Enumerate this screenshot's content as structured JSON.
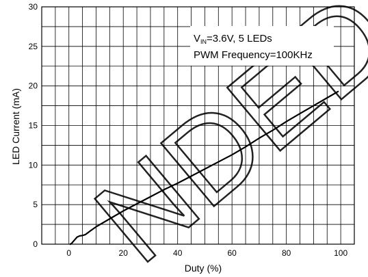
{
  "chart_data": {
    "type": "line",
    "xlabel": "Duty (%)",
    "ylabel": "LED Current (mA)",
    "xlim": [
      -10,
      105
    ],
    "ylim": [
      0,
      30
    ],
    "xticks": [
      0,
      20,
      40,
      60,
      80,
      100
    ],
    "yticks": [
      0,
      5,
      10,
      15,
      20,
      25,
      30
    ],
    "grid": true,
    "annotation": {
      "line1_prefix": "V",
      "line1_sub": "IN",
      "line1_suffix": "=3.6V, 5 LEDs",
      "line2": "PWM Frequency=100KHz",
      "placement": "top-right"
    },
    "series": [
      {
        "x": [
          0.5,
          1,
          2,
          3,
          4,
          5,
          6,
          8,
          10,
          15,
          20,
          25,
          30,
          35,
          40,
          45,
          50,
          55,
          60,
          65,
          70,
          75,
          80,
          85,
          90,
          95,
          99
        ],
        "y": [
          0,
          0.1,
          0.5,
          0.9,
          1.05,
          1.1,
          1.2,
          1.7,
          2.2,
          3.2,
          4.2,
          5.1,
          6.0,
          6.9,
          7.7,
          8.6,
          9.5,
          10.4,
          11.3,
          12.3,
          13.4,
          14.4,
          15.5,
          16.5,
          17.5,
          18.5,
          19.3
        ],
        "color": "#000000"
      }
    ],
    "watermark": "NDED"
  }
}
